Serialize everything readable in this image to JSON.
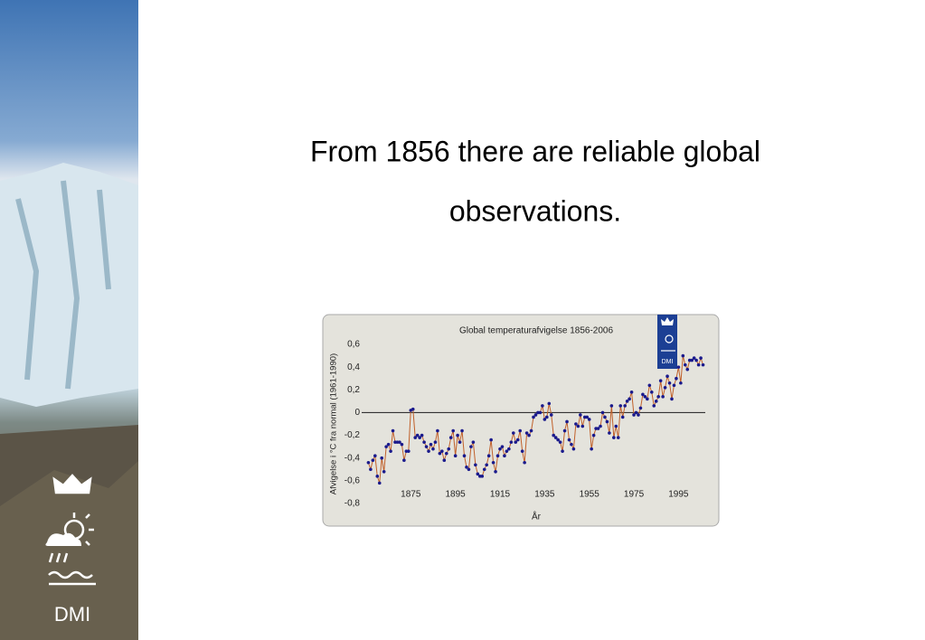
{
  "heading": [
    "From 1856 there are reliable global",
    "observations."
  ],
  "logo": "DMI",
  "chart_data": {
    "type": "line",
    "title": "Global temperaturafvigelse 1856-2006",
    "y_label": "Afvigelse i °C fra normal (1961-1990)",
    "x_label": "År",
    "x": [
      1856,
      1857,
      1858,
      1859,
      1860,
      1861,
      1862,
      1863,
      1864,
      1865,
      1866,
      1867,
      1868,
      1869,
      1870,
      1871,
      1872,
      1873,
      1874,
      1875,
      1876,
      1877,
      1878,
      1879,
      1880,
      1881,
      1882,
      1883,
      1884,
      1885,
      1886,
      1887,
      1888,
      1889,
      1890,
      1891,
      1892,
      1893,
      1894,
      1895,
      1896,
      1897,
      1898,
      1899,
      1900,
      1901,
      1902,
      1903,
      1904,
      1905,
      1906,
      1907,
      1908,
      1909,
      1910,
      1911,
      1912,
      1913,
      1914,
      1915,
      1916,
      1917,
      1918,
      1919,
      1920,
      1921,
      1922,
      1923,
      1924,
      1925,
      1926,
      1927,
      1928,
      1929,
      1930,
      1931,
      1932,
      1933,
      1934,
      1935,
      1936,
      1937,
      1938,
      1939,
      1940,
      1941,
      1942,
      1943,
      1944,
      1945,
      1946,
      1947,
      1948,
      1949,
      1950,
      1951,
      1952,
      1953,
      1954,
      1955,
      1956,
      1957,
      1958,
      1959,
      1960,
      1961,
      1962,
      1963,
      1964,
      1965,
      1966,
      1967,
      1968,
      1969,
      1970,
      1971,
      1972,
      1973,
      1974,
      1975,
      1976,
      1977,
      1978,
      1979,
      1980,
      1981,
      1982,
      1983,
      1984,
      1985,
      1986,
      1987,
      1988,
      1989,
      1990,
      1991,
      1992,
      1993,
      1994,
      1995,
      1996,
      1997,
      1998,
      1999,
      2000,
      2001,
      2002,
      2003,
      2004,
      2005,
      2006
    ],
    "series": [
      {
        "color": "#c0602a",
        "marker_color": "#1a1a8c",
        "values": [
          -0.44,
          -0.5,
          -0.42,
          -0.38,
          -0.56,
          -0.62,
          -0.4,
          -0.52,
          -0.3,
          -0.28,
          -0.34,
          -0.16,
          -0.26,
          -0.26,
          -0.26,
          -0.28,
          -0.42,
          -0.34,
          -0.34,
          0.02,
          0.03,
          -0.22,
          -0.2,
          -0.22,
          -0.2,
          -0.26,
          -0.3,
          -0.34,
          -0.28,
          -0.32,
          -0.26,
          -0.16,
          -0.36,
          -0.34,
          -0.42,
          -0.36,
          -0.32,
          -0.22,
          -0.16,
          -0.38,
          -0.2,
          -0.26,
          -0.16,
          -0.38,
          -0.48,
          -0.5,
          -0.3,
          -0.26,
          -0.46,
          -0.54,
          -0.56,
          -0.56,
          -0.5,
          -0.46,
          -0.38,
          -0.24,
          -0.44,
          -0.52,
          -0.38,
          -0.32,
          -0.3,
          -0.38,
          -0.34,
          -0.32,
          -0.26,
          -0.18,
          -0.26,
          -0.24,
          -0.16,
          -0.34,
          -0.44,
          -0.18,
          -0.2,
          -0.16,
          -0.04,
          -0.02,
          0.0,
          0.0,
          0.06,
          -0.06,
          -0.04,
          0.08,
          -0.02,
          -0.2,
          -0.22,
          -0.24,
          -0.26,
          -0.34,
          -0.16,
          -0.08,
          -0.24,
          -0.28,
          -0.32,
          -0.1,
          -0.12,
          -0.02,
          -0.12,
          -0.04,
          -0.04,
          -0.06,
          -0.32,
          -0.2,
          -0.14,
          -0.14,
          -0.12,
          0.0,
          -0.04,
          -0.08,
          -0.18,
          0.06,
          -0.22,
          -0.12,
          -0.22,
          0.06,
          -0.04,
          0.06,
          0.1,
          0.12,
          0.18,
          -0.02,
          0.0,
          -0.02,
          0.04,
          0.16,
          0.14,
          0.12,
          0.24,
          0.18,
          0.06,
          0.1,
          0.14,
          0.28,
          0.14,
          0.22,
          0.32,
          0.26,
          0.12,
          0.24,
          0.3,
          0.4,
          0.26,
          0.5,
          0.42,
          0.38,
          0.46,
          0.46,
          0.48,
          0.46,
          0.42,
          0.48,
          0.42
        ]
      }
    ],
    "xlim": [
      1853,
      2007
    ],
    "xticks": [
      1875,
      1895,
      1915,
      1935,
      1955,
      1975,
      1995
    ],
    "ylim": [
      -0.8,
      0.6
    ],
    "yticks": [
      {
        "value": -0.8,
        "label": "-0,8"
      },
      {
        "value": -0.6,
        "label": "-0,6"
      },
      {
        "value": -0.4,
        "label": "-0,4"
      },
      {
        "value": -0.2,
        "label": "-0,2"
      },
      0,
      {
        "value": 0.2,
        "label": "0,2"
      },
      {
        "value": 0.4,
        "label": "0,4"
      },
      {
        "value": 0.6,
        "label": "0,6"
      }
    ],
    "grid": false
  }
}
